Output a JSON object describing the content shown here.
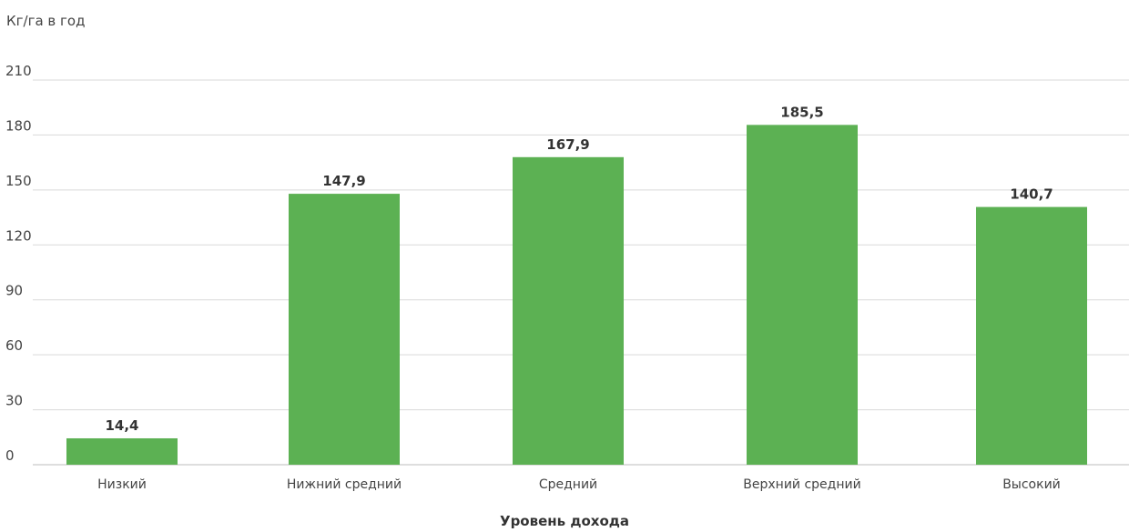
{
  "chart_data": {
    "type": "bar",
    "ylabel": "Кг/га в год",
    "xlabel": "Уровень дохода",
    "categories": [
      "Низкий",
      "Нижний средний",
      "Средний",
      "Верхний средний",
      "Высокий"
    ],
    "values": [
      14.4,
      147.9,
      167.9,
      185.5,
      140.7
    ],
    "value_labels": [
      "14,4",
      "147,9",
      "167,9",
      "185,5",
      "140,7"
    ],
    "ylim": [
      0,
      210
    ],
    "yticks": [
      0,
      30,
      60,
      90,
      120,
      150,
      180,
      210
    ],
    "ytick_labels": [
      "0",
      "30",
      "60",
      "90",
      "120",
      "150",
      "180",
      "210"
    ],
    "grid": true,
    "bar_color": "#5cb153"
  }
}
